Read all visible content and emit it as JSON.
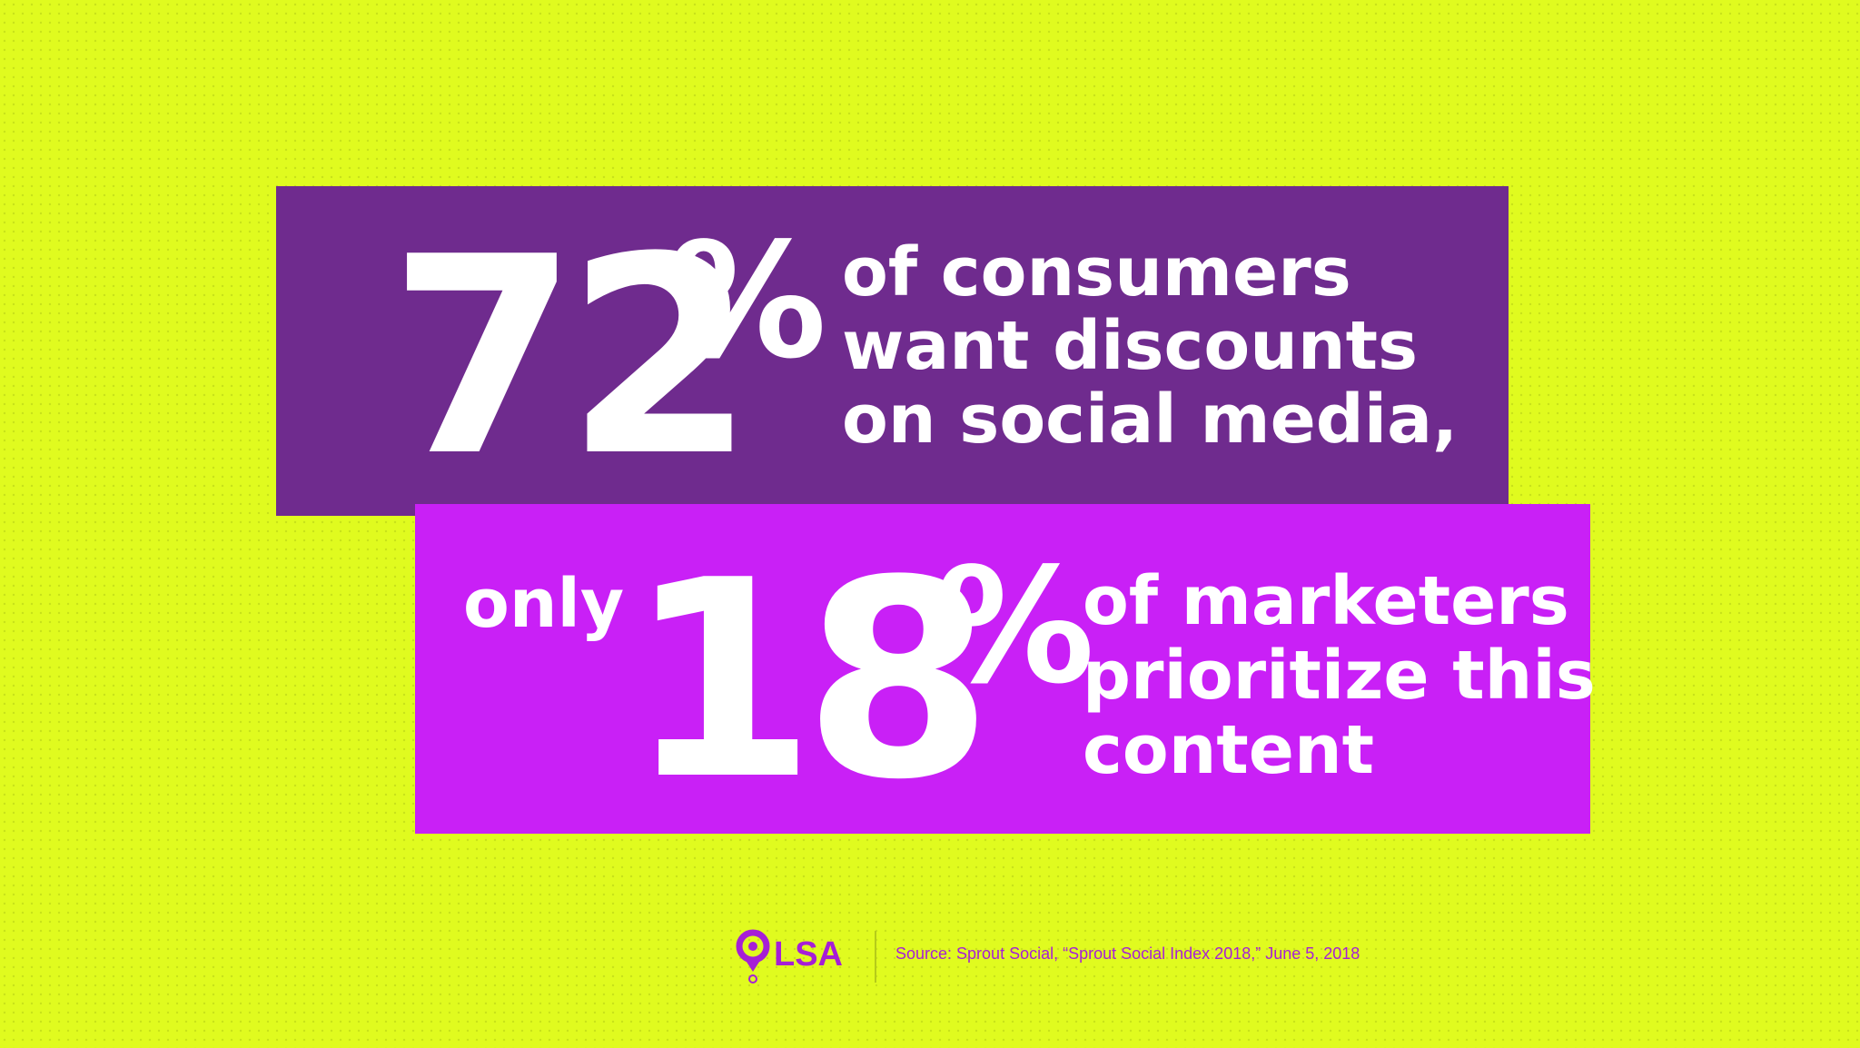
{
  "stat1": {
    "number": "72",
    "unit": "%",
    "lines": [
      "of consumers",
      "want discounts",
      "on social media,"
    ]
  },
  "stat2": {
    "prefix": "only",
    "number": "18",
    "unit": "%",
    "lines": [
      "of marketers",
      "prioritize this",
      "content"
    ]
  },
  "footer": {
    "logo": "LSA",
    "source": "Source: Sprout Social, “Sprout Social Index 2018,” June 5, 2018"
  }
}
